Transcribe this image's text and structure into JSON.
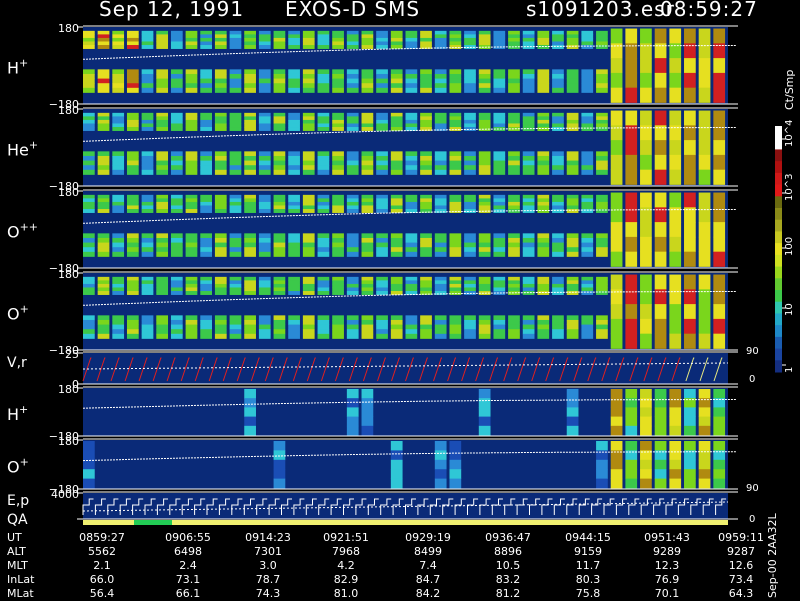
{
  "header": {
    "date": "Sep 12, 1991",
    "instrument": "EXOS-D SMS",
    "file": "s1091203.esr",
    "time": "08:59:27"
  },
  "colors": {
    "background": "#000000",
    "panel_bg": "#0a2a78",
    "trace": "#ffffff",
    "sweep": "#e02020",
    "quality_bar": "#f0f070",
    "quality_ok": "#22cc55"
  },
  "colorbar": {
    "label": "Ct/Smp",
    "tick_labels": [
      "10^4",
      "10^3",
      "100",
      "10",
      "1"
    ],
    "scale": "log",
    "range": [
      1,
      10000
    ]
  },
  "side_labels": {
    "vr_top": "90",
    "vr_bottom": "0",
    "o_bottom": "90",
    "ep_bottom": "0"
  },
  "footer_id": "Sep-00 2AA32L",
  "chart_data": {
    "type": "heatmap",
    "panels": [
      {
        "label": "H+",
        "species": "H",
        "charge": "+",
        "ylim": [
          -180,
          180
        ],
        "tick_top": "180",
        "tick_bottom": "−180"
      },
      {
        "label": "He+",
        "species": "He",
        "charge": "+",
        "ylim": [
          -180,
          180
        ],
        "tick_top": "180",
        "tick_bottom": "−180"
      },
      {
        "label": "O++",
        "species": "O",
        "charge": "++",
        "ylim": [
          -180,
          180
        ],
        "tick_top": "180",
        "tick_bottom": "−180"
      },
      {
        "label": "O+",
        "species": "O",
        "charge": "+",
        "ylim": [
          -180,
          180
        ],
        "tick_top": "180",
        "tick_bottom": "−180"
      },
      {
        "label": "V,r",
        "ylim": [
          0,
          25
        ],
        "tick_top": "25",
        "tick_bottom": "0"
      },
      {
        "label": "H+",
        "species": "H",
        "charge": "+",
        "ylim": [
          -180,
          180
        ],
        "tick_top": "180",
        "tick_bottom": "−180"
      },
      {
        "label": "O+",
        "species": "O",
        "charge": "+",
        "ylim": [
          -180,
          180
        ],
        "tick_top": "180",
        "tick_bottom": "−180"
      },
      {
        "label": "E,p",
        "ylim": [
          0,
          4000
        ],
        "tick_top": "4000",
        "tick_bottom": "0"
      }
    ],
    "qa_label": "QA",
    "orbit_table": {
      "columns": [
        "0859:27",
        "0906:55",
        "0914:23",
        "0921:51",
        "0929:19",
        "0936:47",
        "0944:15",
        "0951:43",
        "0959:11"
      ],
      "rows": [
        {
          "name": "UT",
          "values": [
            "0859:27",
            "0906:55",
            "0914:23",
            "0921:51",
            "0929:19",
            "0936:47",
            "0944:15",
            "0951:43",
            "0959:11"
          ]
        },
        {
          "name": "ALT",
          "values": [
            "5562",
            "6498",
            "7301",
            "7968",
            "8499",
            "8896",
            "9159",
            "9289",
            "9287"
          ]
        },
        {
          "name": "MLT",
          "values": [
            "2.1",
            "2.4",
            "3.0",
            "4.2",
            "7.4",
            "10.5",
            "11.7",
            "12.3",
            "12.6"
          ]
        },
        {
          "name": "InLat",
          "values": [
            "66.0",
            "73.1",
            "78.7",
            "82.9",
            "84.7",
            "83.2",
            "80.3",
            "76.9",
            "73.4"
          ]
        },
        {
          "name": "MLat",
          "values": [
            "56.4",
            "66.1",
            "74.3",
            "81.0",
            "84.2",
            "81.2",
            "75.8",
            "70.1",
            "64.3"
          ]
        }
      ]
    }
  }
}
